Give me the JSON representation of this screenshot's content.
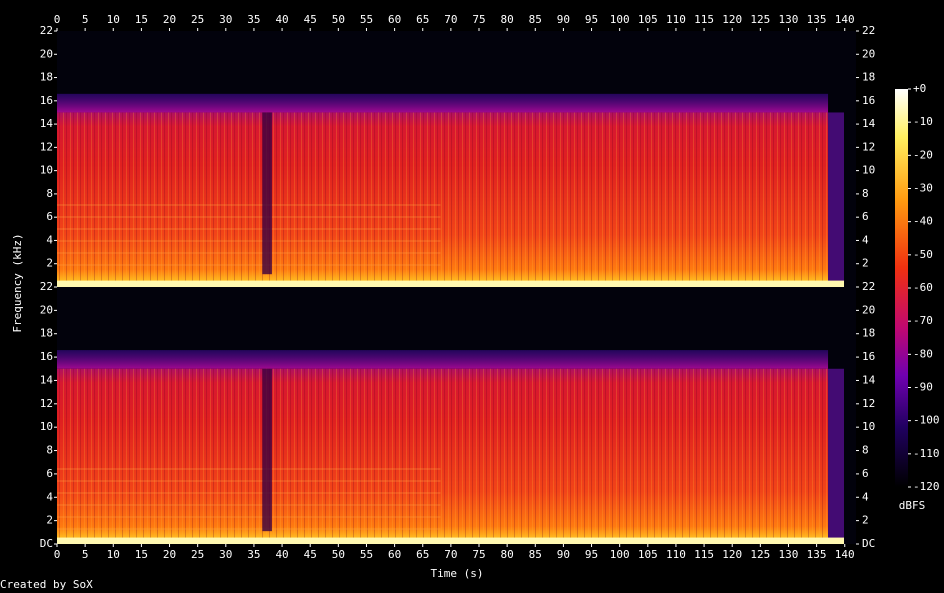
{
  "chart_data": [
    {
      "type": "spectrogram",
      "xaxis": "top",
      "xlim": [
        0,
        142
      ],
      "xticks": [
        0,
        5,
        10,
        15,
        20,
        25,
        30,
        35,
        40,
        45,
        50,
        55,
        60,
        65,
        70,
        75,
        80,
        85,
        90,
        95,
        100,
        105,
        110,
        115,
        120,
        125,
        130,
        135,
        140
      ],
      "ylim": [
        0,
        22
      ],
      "yticks": [
        2,
        4,
        6,
        8,
        10,
        12,
        14,
        16,
        18,
        20,
        22
      ]
    },
    {
      "type": "spectrogram",
      "xaxis": "bottom",
      "xlim": [
        0,
        142
      ],
      "xticks": [
        0,
        5,
        10,
        15,
        20,
        25,
        30,
        35,
        40,
        45,
        50,
        55,
        60,
        65,
        70,
        75,
        80,
        85,
        90,
        95,
        100,
        105,
        110,
        115,
        120,
        125,
        130,
        135,
        140
      ],
      "ylim": [
        0,
        22
      ],
      "yticks": [
        {
          "value": 0,
          "label": "DC"
        },
        2,
        4,
        6,
        8,
        10,
        12,
        14,
        16,
        18,
        20,
        22
      ]
    }
  ],
  "xlabel": "Time (s)",
  "ylabel": "Frequency (kHz)",
  "colorbar": {
    "label": "dBFS",
    "lim": [
      -120,
      0
    ],
    "ticks": [
      {
        "value": 0,
        "label": "+0"
      },
      -10,
      -20,
      -30,
      -40,
      -50,
      -60,
      -70,
      -80,
      -90,
      -100,
      -110,
      -120
    ]
  },
  "footer": "Created by SoX"
}
